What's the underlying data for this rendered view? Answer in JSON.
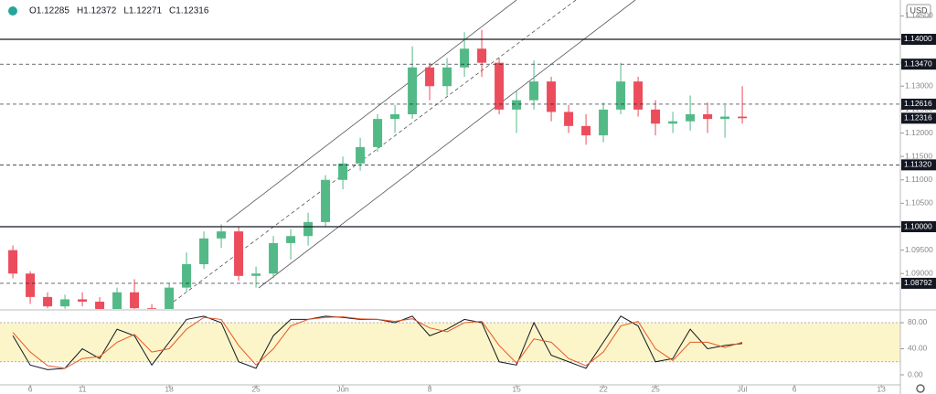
{
  "header": {
    "symbol_values": [
      "O1.12285",
      "H1.12372",
      "L1.12271",
      "C1.12316"
    ],
    "currency": "USD"
  },
  "chart_data": [
    {
      "type": "candlestick",
      "up_color": "#53b987",
      "down_color": "#eb4d5c",
      "x": [
        -1,
        0,
        1,
        2,
        3,
        4,
        5,
        6,
        7,
        8,
        9,
        10,
        11,
        12,
        13,
        14,
        15,
        16,
        17,
        18,
        19,
        20,
        21,
        22,
        23,
        24,
        25,
        26,
        27,
        28,
        29,
        30,
        31,
        32,
        33,
        34,
        35,
        36,
        37,
        38,
        39,
        40,
        41
      ],
      "open": [
        1.095,
        1.09,
        1.085,
        1.083,
        1.0845,
        1.084,
        1.0815,
        1.086,
        1.0826,
        1.081,
        1.087,
        1.092,
        1.0975,
        1.099,
        1.0895,
        1.09,
        1.0965,
        1.098,
        1.101,
        1.11,
        1.1135,
        1.117,
        1.123,
        1.124,
        1.134,
        1.13,
        1.134,
        1.138,
        1.135,
        1.125,
        1.127,
        1.131,
        1.1245,
        1.1215,
        1.1195,
        1.125,
        1.131,
        1.125,
        1.122,
        1.1225,
        1.124,
        1.123,
        1.1235
      ],
      "high": [
        1.096,
        1.0905,
        1.086,
        1.0855,
        1.086,
        1.085,
        1.087,
        1.0888,
        1.0835,
        1.088,
        1.0945,
        1.099,
        1.1005,
        1.1,
        1.0915,
        1.098,
        1.0995,
        1.103,
        1.111,
        1.115,
        1.119,
        1.124,
        1.126,
        1.1385,
        1.135,
        1.136,
        1.1415,
        1.142,
        1.136,
        1.129,
        1.1355,
        1.132,
        1.126,
        1.124,
        1.1265,
        1.135,
        1.132,
        1.127,
        1.1245,
        1.128,
        1.1265,
        1.126,
        1.13
      ],
      "low": [
        1.089,
        1.0835,
        1.0826,
        1.0825,
        1.083,
        1.081,
        1.0812,
        1.082,
        1.08,
        1.08,
        1.086,
        1.091,
        1.0955,
        1.0885,
        1.087,
        1.089,
        1.093,
        1.096,
        1.1,
        1.108,
        1.112,
        1.116,
        1.12,
        1.123,
        1.127,
        1.128,
        1.132,
        1.132,
        1.124,
        1.12,
        1.125,
        1.1225,
        1.12,
        1.1175,
        1.118,
        1.124,
        1.1235,
        1.1195,
        1.12,
        1.1205,
        1.12,
        1.119,
        1.122
      ],
      "close": [
        1.09,
        1.085,
        1.083,
        1.0845,
        1.084,
        1.0815,
        1.086,
        1.0826,
        1.081,
        1.087,
        1.092,
        1.0975,
        1.099,
        1.0895,
        1.09,
        1.0965,
        1.098,
        1.101,
        1.11,
        1.1135,
        1.117,
        1.123,
        1.124,
        1.134,
        1.13,
        1.134,
        1.138,
        1.135,
        1.125,
        1.127,
        1.131,
        1.1245,
        1.1215,
        1.1195,
        1.125,
        1.131,
        1.125,
        1.122,
        1.1225,
        1.124,
        1.123,
        1.1235,
        1.12316
      ],
      "xlim": [
        -1.74,
        50.1
      ],
      "ylim": [
        1.08244,
        1.14839
      ],
      "yticks": [
        {
          "value": 1.09,
          "label": "1.09000"
        },
        {
          "value": 1.095,
          "label": "1.09500"
        },
        {
          "value": 1.1,
          "label": "1.10000"
        },
        {
          "value": 1.105,
          "label": "1.10500"
        },
        {
          "value": 1.11,
          "label": "1.11000"
        },
        {
          "value": 1.115,
          "label": "1.11500"
        },
        {
          "value": 1.12,
          "label": "1.12000"
        },
        {
          "value": 1.125,
          "label": "1.12500"
        },
        {
          "value": 1.13,
          "label": "1.13000"
        },
        {
          "value": 1.135,
          "label": "1.13500"
        },
        {
          "value": 1.14,
          "label": "1.14000"
        },
        {
          "value": 1.145,
          "label": "1.14500"
        }
      ],
      "levels": [
        {
          "value": 1.14,
          "label": "1.14000",
          "style": "solid"
        },
        {
          "value": 1.1347,
          "label": "1.13470",
          "style": "dashed"
        },
        {
          "value": 1.12616,
          "label": "1.12616",
          "style": "dashed"
        },
        {
          "value": 1.12316,
          "label": "1.12316",
          "style": "none"
        },
        {
          "value": 1.1132,
          "label": "1.11320",
          "style": "dashed"
        },
        {
          "value": 1.1,
          "label": "1.10000",
          "style": "solid"
        },
        {
          "value": 1.08792,
          "label": "1.08792",
          "style": "dashed"
        }
      ]
    },
    {
      "type": "line",
      "x": [
        -1,
        0,
        1,
        2,
        3,
        4,
        5,
        6,
        7,
        8,
        9,
        10,
        11,
        12,
        13,
        14,
        15,
        16,
        17,
        18,
        19,
        20,
        21,
        22,
        23,
        24,
        25,
        26,
        27,
        28,
        29,
        30,
        31,
        32,
        33,
        34,
        35,
        36,
        37,
        38,
        39,
        40,
        41
      ],
      "series": [
        {
          "color": "#131722",
          "values": [
            60,
            15,
            8,
            10,
            40,
            25,
            70,
            60,
            15,
            50,
            85,
            90,
            80,
            20,
            10,
            60,
            85,
            85,
            90,
            88,
            85,
            85,
            80,
            90,
            60,
            70,
            85,
            80,
            20,
            15,
            80,
            30,
            20,
            10,
            50,
            90,
            75,
            20,
            25,
            70,
            40,
            45,
            48
          ]
        },
        {
          "color": "#e8572a",
          "values": [
            65,
            35,
            14,
            10,
            25,
            28,
            50,
            62,
            35,
            40,
            70,
            88,
            85,
            45,
            15,
            40,
            75,
            85,
            88,
            89,
            86,
            85,
            82,
            86,
            72,
            66,
            80,
            82,
            45,
            18,
            55,
            50,
            25,
            14,
            35,
            75,
            82,
            40,
            22,
            50,
            50,
            42,
            50
          ]
        }
      ],
      "band": [
        20,
        80
      ],
      "xlim": [
        -1.74,
        50.1
      ],
      "ylim": [
        -14,
        98.2
      ],
      "yticks": [
        {
          "value": 0,
          "label": "0.00"
        },
        {
          "value": 40,
          "label": "40.00"
        },
        {
          "value": 80,
          "label": "80.00"
        }
      ],
      "xticks": [
        {
          "value": 0,
          "label": "6"
        },
        {
          "value": 3,
          "label": "11"
        },
        {
          "value": 8,
          "label": "18"
        },
        {
          "value": 13,
          "label": "25"
        },
        {
          "value": 18,
          "label": "Jun"
        },
        {
          "value": 23,
          "label": "8"
        },
        {
          "value": 28,
          "label": "15"
        },
        {
          "value": 33,
          "label": "22"
        },
        {
          "value": 36,
          "label": "25"
        },
        {
          "value": 41,
          "label": "Jul"
        },
        {
          "value": 44,
          "label": "6"
        },
        {
          "value": 49,
          "label": "13"
        }
      ]
    }
  ]
}
